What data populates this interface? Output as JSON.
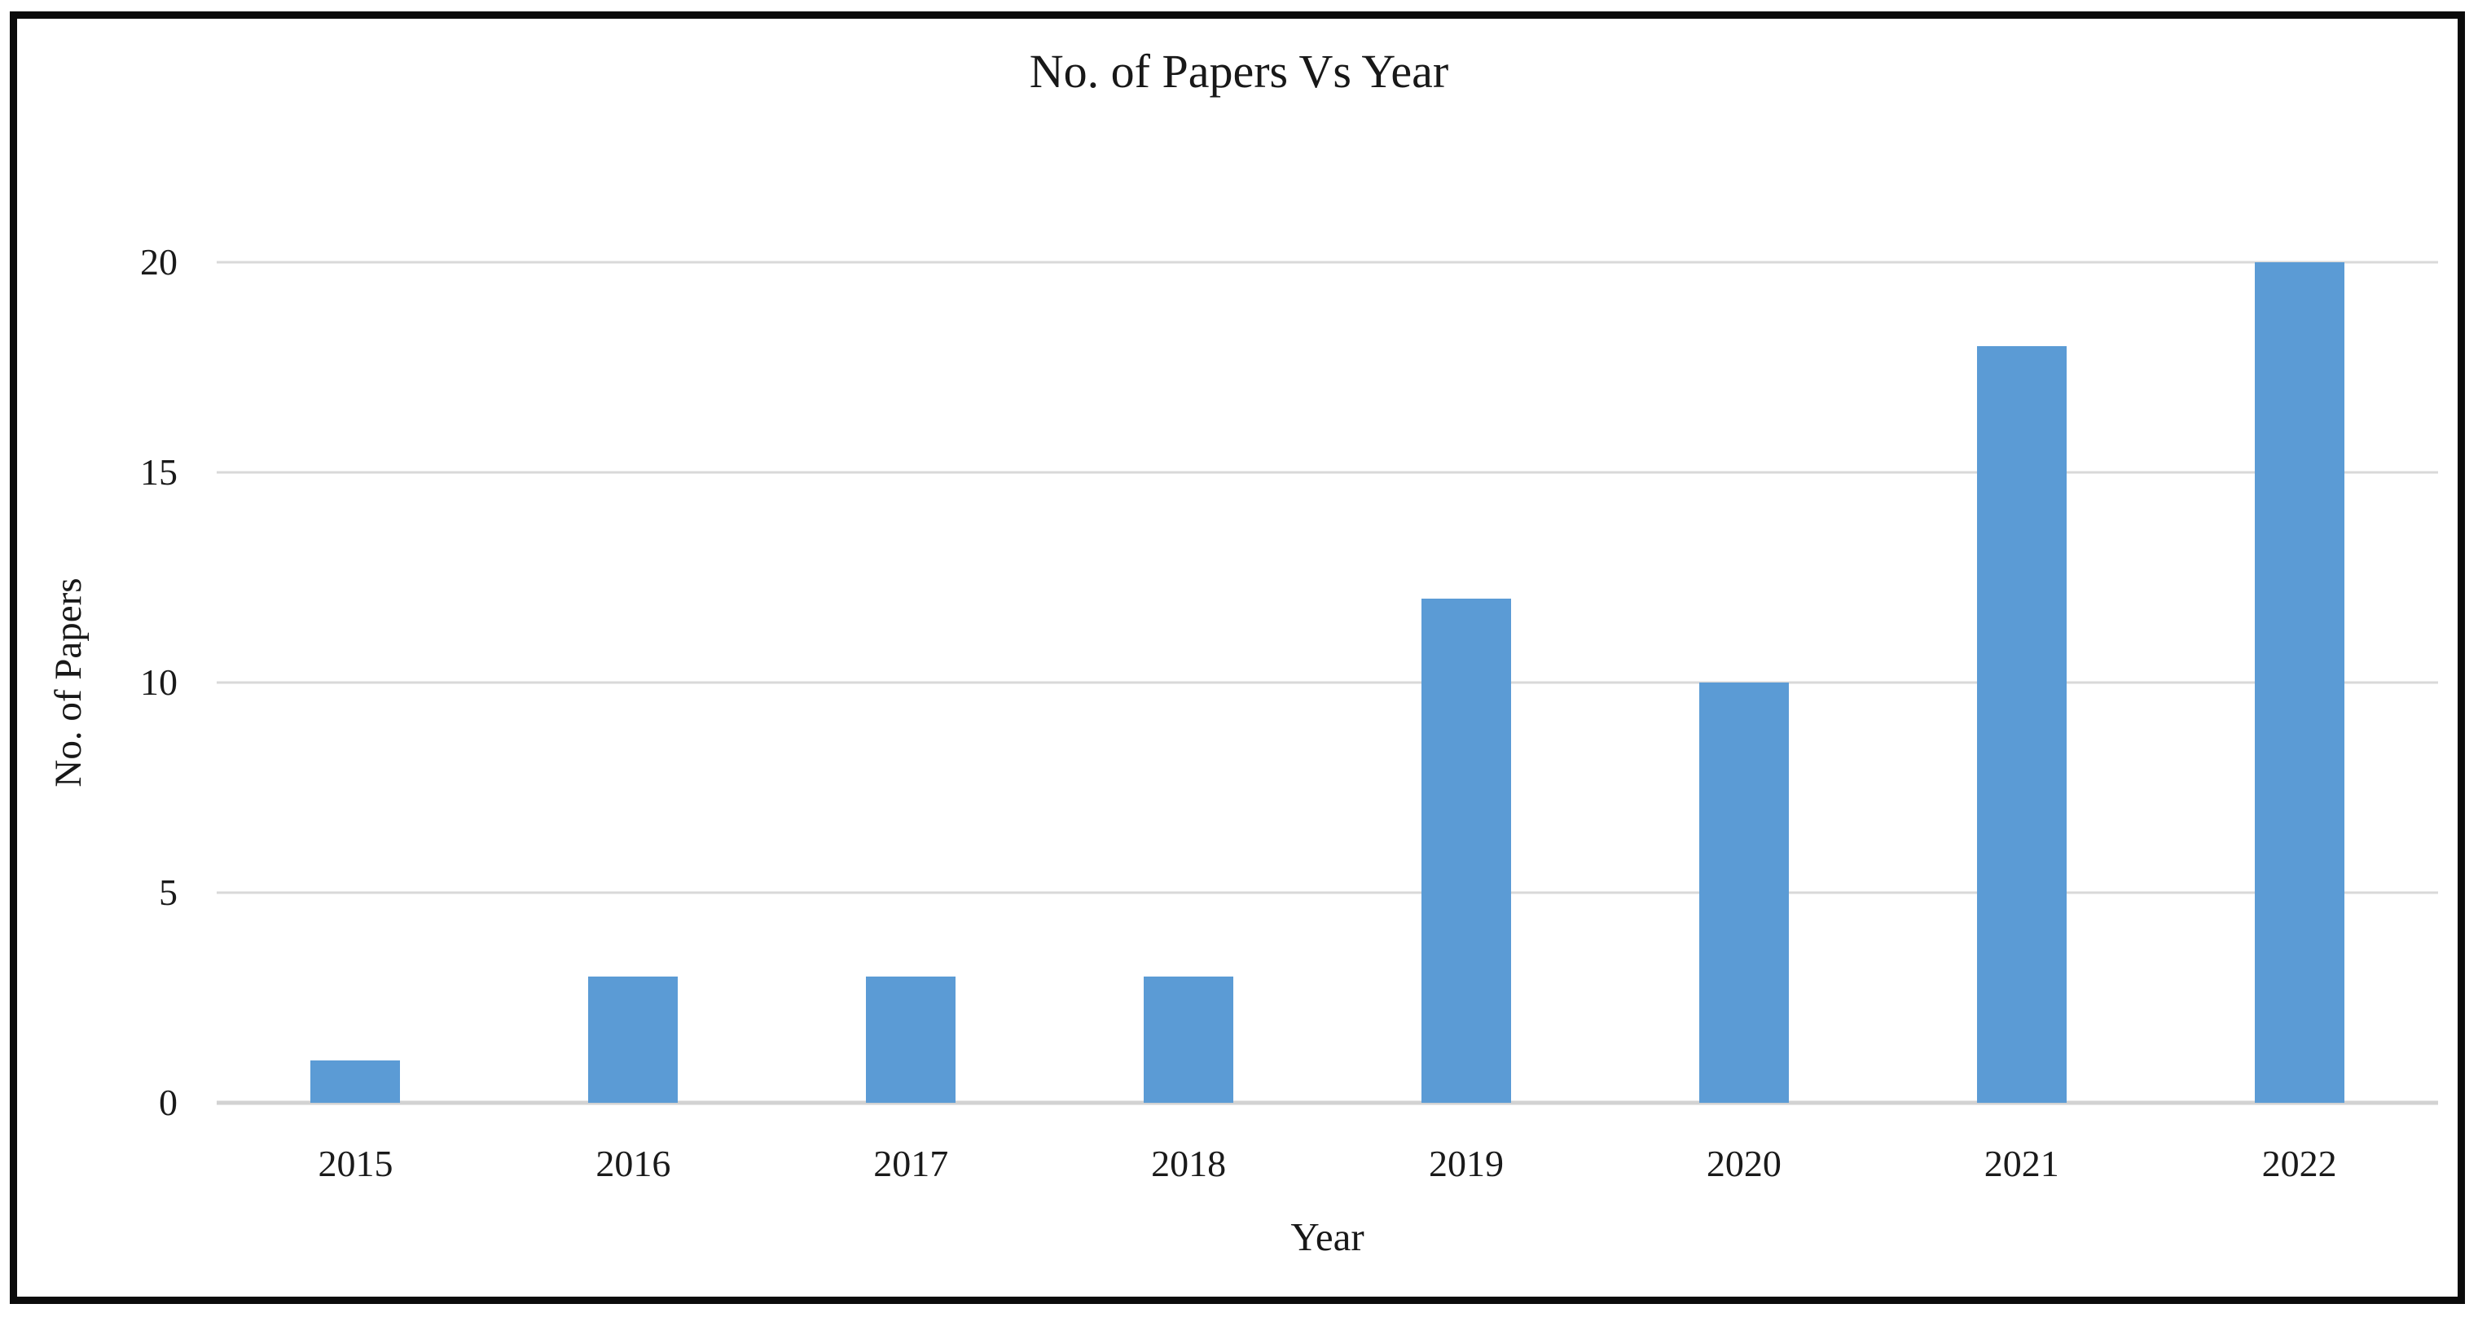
{
  "chart": {
    "title": "No. of Papers Vs Year",
    "x_axis_title": "Year",
    "y_axis_title": "No. of Papers"
  },
  "chart_data": {
    "type": "bar",
    "title": "No. of Papers Vs Year",
    "xlabel": "Year",
    "ylabel": "No. of Papers",
    "categories": [
      "2015",
      "2016",
      "2017",
      "2018",
      "2019",
      "2020",
      "2021",
      "2022"
    ],
    "values": [
      1,
      3,
      3,
      3,
      12,
      10,
      18,
      20
    ],
    "ylim": [
      0,
      20
    ],
    "yticks": [
      0,
      5,
      10,
      15,
      20
    ],
    "grid": true,
    "legend": false,
    "bar_color": "#5b9bd5",
    "gridline_color": "#d9d9d9",
    "axis_line_color": "#d2d2d2",
    "text_color": "#1a1a1a",
    "frame_border_color": "#0b0b0b"
  }
}
